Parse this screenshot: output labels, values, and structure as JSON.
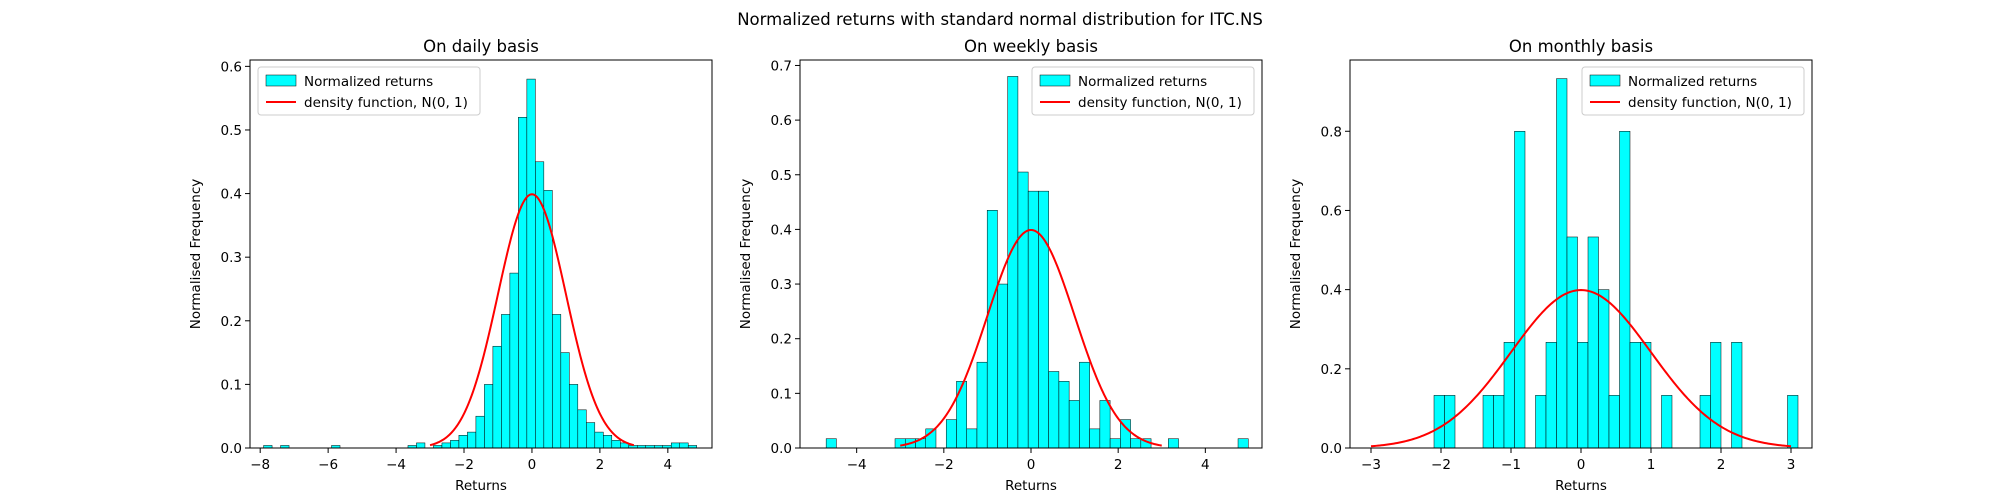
{
  "figure": {
    "title": "Normalized returns with standard normal distribution for ITC.NS"
  },
  "colors": {
    "bar_fill": "#00ffff",
    "bar_edge": "#000000",
    "density_line": "#ff0000"
  },
  "chart_data": [
    {
      "type": "bar",
      "title": "On daily basis",
      "xlabel": "Returns",
      "ylabel": "Normalised Frequency",
      "xlim": [
        -8.3,
        5.3
      ],
      "ylim": [
        0,
        0.61
      ],
      "xticks": [
        -8,
        -6,
        -4,
        -2,
        0,
        2,
        4
      ],
      "yticks": [
        0.0,
        0.1,
        0.2,
        0.3,
        0.4,
        0.5,
        0.6
      ],
      "grid": false,
      "legend": {
        "position": "top-left",
        "entries": [
          "Normalized returns",
          "density function, N(0, 1)"
        ]
      },
      "histogram": {
        "name": "Normalized returns",
        "bin_width": 0.25,
        "bins": [
          [
            -7.9,
            0.004
          ],
          [
            -7.4,
            0.004
          ],
          [
            -5.9,
            0.004
          ],
          [
            -3.65,
            0.004
          ],
          [
            -3.4,
            0.008
          ],
          [
            -2.9,
            0.004
          ],
          [
            -2.65,
            0.008
          ],
          [
            -2.4,
            0.012
          ],
          [
            -2.15,
            0.02
          ],
          [
            -1.9,
            0.025
          ],
          [
            -1.65,
            0.05
          ],
          [
            -1.4,
            0.1
          ],
          [
            -1.15,
            0.16
          ],
          [
            -0.9,
            0.21
          ],
          [
            -0.65,
            0.275
          ],
          [
            -0.4,
            0.52
          ],
          [
            -0.15,
            0.58
          ],
          [
            0.1,
            0.45
          ],
          [
            0.35,
            0.405
          ],
          [
            0.6,
            0.21
          ],
          [
            0.85,
            0.15
          ],
          [
            1.1,
            0.1
          ],
          [
            1.35,
            0.06
          ],
          [
            1.6,
            0.04
          ],
          [
            1.85,
            0.025
          ],
          [
            2.1,
            0.02
          ],
          [
            2.35,
            0.012
          ],
          [
            2.6,
            0.008
          ],
          [
            2.85,
            0.004
          ],
          [
            3.1,
            0.004
          ],
          [
            3.35,
            0.004
          ],
          [
            3.6,
            0.004
          ],
          [
            3.85,
            0.004
          ],
          [
            4.1,
            0.008
          ],
          [
            4.35,
            0.008
          ],
          [
            4.6,
            0.004
          ]
        ]
      },
      "density": {
        "name": "density function, N(0, 1)",
        "mean": 0,
        "sd": 1,
        "x_range": [
          -3,
          3
        ]
      }
    },
    {
      "type": "bar",
      "title": "On weekly basis",
      "xlabel": "Returns",
      "ylabel": "Normalised Frequency",
      "xlim": [
        -5.3,
        5.3
      ],
      "ylim": [
        0,
        0.71
      ],
      "xticks": [
        -4,
        -2,
        0,
        2,
        4
      ],
      "yticks": [
        0.0,
        0.1,
        0.2,
        0.3,
        0.4,
        0.5,
        0.6,
        0.7
      ],
      "grid": false,
      "legend": {
        "position": "top-right",
        "entries": [
          "Normalized returns",
          "density function, N(0, 1)"
        ]
      },
      "histogram": {
        "name": "Normalized returns",
        "bin_width": 0.235,
        "bins": [
          [
            -4.7,
            0.017
          ],
          [
            -3.12,
            0.017
          ],
          [
            -2.885,
            0.017
          ],
          [
            -2.65,
            0.017
          ],
          [
            -2.415,
            0.035
          ],
          [
            -2.18,
            0.0
          ],
          [
            -1.945,
            0.052
          ],
          [
            -1.71,
            0.122
          ],
          [
            -1.475,
            0.035
          ],
          [
            -1.24,
            0.157
          ],
          [
            -1.005,
            0.435
          ],
          [
            -0.77,
            0.3
          ],
          [
            -0.535,
            0.68
          ],
          [
            -0.3,
            0.505
          ],
          [
            -0.065,
            0.47
          ],
          [
            0.17,
            0.47
          ],
          [
            0.405,
            0.14
          ],
          [
            0.64,
            0.122
          ],
          [
            0.875,
            0.087
          ],
          [
            1.11,
            0.157
          ],
          [
            1.345,
            0.035
          ],
          [
            1.58,
            0.087
          ],
          [
            1.815,
            0.017
          ],
          [
            2.05,
            0.052
          ],
          [
            2.285,
            0.017
          ],
          [
            2.52,
            0.017
          ],
          [
            3.15,
            0.017
          ],
          [
            4.75,
            0.017
          ]
        ]
      },
      "density": {
        "name": "density function, N(0, 1)",
        "mean": 0,
        "sd": 1,
        "x_range": [
          -3,
          3
        ]
      }
    },
    {
      "type": "bar",
      "title": "On monthly basis",
      "xlabel": "Returns",
      "ylabel": "Normalised Frequency",
      "xlim": [
        -3.3,
        3.3
      ],
      "ylim": [
        0,
        0.98
      ],
      "xticks": [
        -3,
        -2,
        -1,
        0,
        1,
        2,
        3
      ],
      "yticks": [
        0.0,
        0.2,
        0.4,
        0.6,
        0.8
      ],
      "grid": false,
      "legend": {
        "position": "top-right",
        "entries": [
          "Normalized returns",
          "density function, N(0, 1)"
        ]
      },
      "histogram": {
        "name": "Normalized returns",
        "bin_width": 0.15,
        "bins": [
          [
            -2.1,
            0.133
          ],
          [
            -1.95,
            0.133
          ],
          [
            -1.4,
            0.133
          ],
          [
            -1.25,
            0.133
          ],
          [
            -1.1,
            0.267
          ],
          [
            -0.95,
            0.8
          ],
          [
            -0.65,
            0.133
          ],
          [
            -0.5,
            0.267
          ],
          [
            -0.35,
            0.933
          ],
          [
            -0.2,
            0.533
          ],
          [
            -0.05,
            0.267
          ],
          [
            0.1,
            0.533
          ],
          [
            0.25,
            0.4
          ],
          [
            0.4,
            0.133
          ],
          [
            0.55,
            0.8
          ],
          [
            0.7,
            0.267
          ],
          [
            0.85,
            0.267
          ],
          [
            1.15,
            0.133
          ],
          [
            1.7,
            0.133
          ],
          [
            1.85,
            0.267
          ],
          [
            2.15,
            0.267
          ],
          [
            2.95,
            0.133
          ]
        ]
      },
      "density": {
        "name": "density function, N(0, 1)",
        "mean": 0,
        "sd": 1,
        "x_range": [
          -3,
          3
        ]
      }
    }
  ]
}
